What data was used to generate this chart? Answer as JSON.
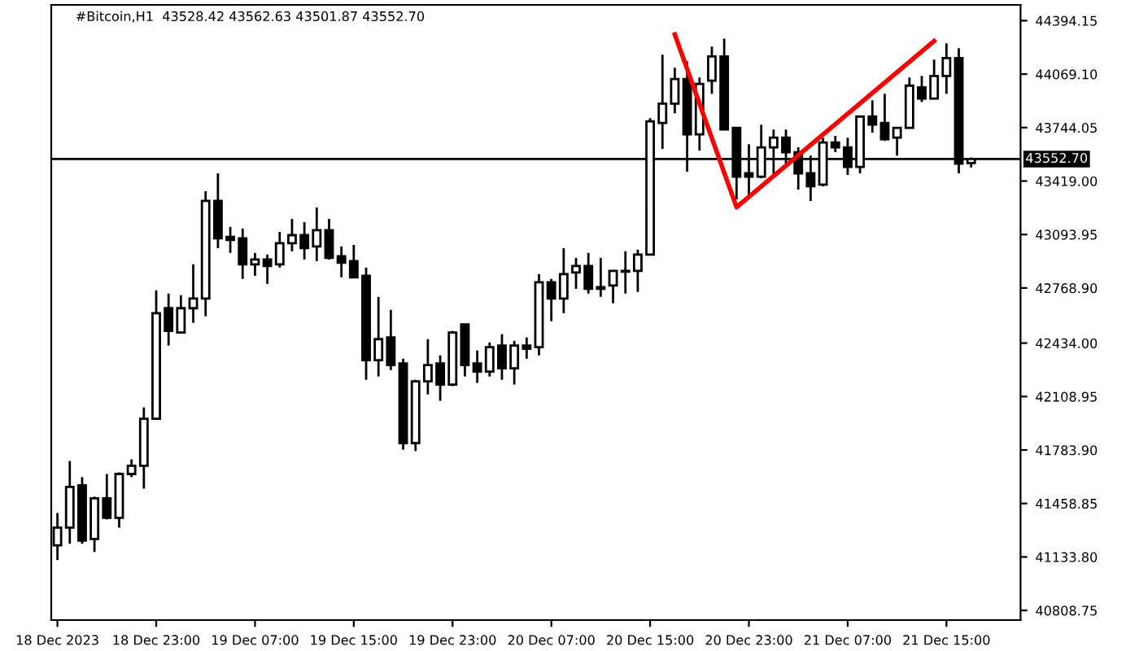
{
  "chart_data": {
    "type": "candlestick",
    "title": "#Bitcoin,H1  43528.42 43562.63 43501.87 43552.70",
    "series": [
      {
        "type": "candlestick",
        "color": "#000000",
        "x": [
          "2023-12-18T15:00",
          "2023-12-18T16:00",
          "2023-12-18T17:00",
          "2023-12-18T18:00",
          "2023-12-18T19:00",
          "2023-12-18T20:00",
          "2023-12-18T21:00",
          "2023-12-18T22:00",
          "2023-12-18T23:00",
          "2023-12-19T00:00",
          "2023-12-19T01:00",
          "2023-12-19T02:00",
          "2023-12-19T03:00",
          "2023-12-19T04:00",
          "2023-12-19T05:00",
          "2023-12-19T06:00",
          "2023-12-19T07:00",
          "2023-12-19T08:00",
          "2023-12-19T09:00",
          "2023-12-19T10:00",
          "2023-12-19T11:00",
          "2023-12-19T12:00",
          "2023-12-19T13:00",
          "2023-12-19T14:00",
          "2023-12-19T15:00",
          "2023-12-19T16:00",
          "2023-12-19T17:00",
          "2023-12-19T18:00",
          "2023-12-19T19:00",
          "2023-12-19T20:00",
          "2023-12-19T21:00",
          "2023-12-19T22:00",
          "2023-12-19T23:00",
          "2023-12-20T00:00",
          "2023-12-20T01:00",
          "2023-12-20T02:00",
          "2023-12-20T03:00",
          "2023-12-20T04:00",
          "2023-12-20T05:00",
          "2023-12-20T06:00",
          "2023-12-20T07:00",
          "2023-12-20T08:00",
          "2023-12-20T09:00",
          "2023-12-20T10:00",
          "2023-12-20T11:00",
          "2023-12-20T12:00",
          "2023-12-20T13:00",
          "2023-12-20T14:00",
          "2023-12-20T15:00",
          "2023-12-20T16:00",
          "2023-12-20T17:00",
          "2023-12-20T18:00",
          "2023-12-20T19:00",
          "2023-12-20T20:00",
          "2023-12-20T21:00",
          "2023-12-20T22:00",
          "2023-12-20T23:00",
          "2023-12-21T00:00",
          "2023-12-21T01:00",
          "2023-12-21T02:00",
          "2023-12-21T03:00",
          "2023-12-21T04:00",
          "2023-12-21T05:00",
          "2023-12-21T06:00",
          "2023-12-21T07:00",
          "2023-12-21T08:00",
          "2023-12-21T09:00",
          "2023-12-21T10:00",
          "2023-12-21T11:00",
          "2023-12-21T12:00",
          "2023-12-21T13:00",
          "2023-12-21T14:00",
          "2023-12-21T15:00",
          "2023-12-21T16:00",
          "2023-12-21T17:00"
        ],
        "ohlc": [
          [
            41204,
            41401,
            41115,
            41312
          ],
          [
            41312,
            41717,
            41214,
            41559
          ],
          [
            41569,
            41619,
            41214,
            41233
          ],
          [
            41243,
            41500,
            41164,
            41490
          ],
          [
            41490,
            41638,
            41362,
            41372
          ],
          [
            41372,
            41648,
            41312,
            41638
          ],
          [
            41638,
            41727,
            41619,
            41688
          ],
          [
            41688,
            42043,
            41549,
            41974
          ],
          [
            41974,
            42755,
            41974,
            42616
          ],
          [
            42646,
            42735,
            42419,
            42508
          ],
          [
            42498,
            42725,
            42498,
            42646
          ],
          [
            42646,
            42913,
            42557,
            42705
          ],
          [
            42705,
            43357,
            42597,
            43298
          ],
          [
            43298,
            43466,
            43011,
            43071
          ],
          [
            43080,
            43140,
            42982,
            43061
          ],
          [
            43071,
            43130,
            42824,
            42913
          ],
          [
            42913,
            42982,
            42843,
            42942
          ],
          [
            42942,
            42972,
            42794,
            42903
          ],
          [
            42913,
            43110,
            42893,
            43041
          ],
          [
            43041,
            43189,
            42992,
            43090
          ],
          [
            43090,
            43169,
            42942,
            43011
          ],
          [
            43021,
            43258,
            42932,
            43120
          ],
          [
            43120,
            43189,
            42942,
            42952
          ],
          [
            42962,
            43021,
            42834,
            42922
          ],
          [
            42932,
            43031,
            42834,
            42834
          ],
          [
            42843,
            42893,
            42211,
            42330
          ],
          [
            42330,
            42715,
            42231,
            42458
          ],
          [
            42468,
            42636,
            42270,
            42300
          ],
          [
            42310,
            42339,
            41786,
            41826
          ],
          [
            41826,
            42211,
            41777,
            42201
          ],
          [
            42201,
            42458,
            42122,
            42300
          ],
          [
            42310,
            42359,
            42083,
            42182
          ],
          [
            42182,
            42508,
            42172,
            42498
          ],
          [
            42547,
            42547,
            42231,
            42300
          ],
          [
            42310,
            42389,
            42192,
            42261
          ],
          [
            42261,
            42438,
            42231,
            42409
          ],
          [
            42419,
            42488,
            42211,
            42280
          ],
          [
            42280,
            42448,
            42182,
            42419
          ],
          [
            42419,
            42468,
            42339,
            42399
          ],
          [
            42409,
            42853,
            42359,
            42804
          ],
          [
            42804,
            42824,
            42567,
            42705
          ],
          [
            42705,
            43011,
            42616,
            42853
          ],
          [
            42863,
            42952,
            42764,
            42903
          ],
          [
            42903,
            42982,
            42735,
            42764
          ],
          [
            42774,
            42952,
            42715,
            42764
          ],
          [
            42784,
            42873,
            42676,
            42873
          ],
          [
            42868,
            42992,
            42735,
            42873
          ],
          [
            42873,
            43002,
            42745,
            42972
          ],
          [
            42972,
            43801,
            42972,
            43782
          ],
          [
            43772,
            44187,
            43614,
            43890
          ],
          [
            43890,
            44108,
            43831,
            44039
          ],
          [
            44039,
            44147,
            43476,
            43703
          ],
          [
            43703,
            44048,
            43604,
            44009
          ],
          [
            44029,
            44236,
            43950,
            44177
          ],
          [
            44177,
            44285,
            43732,
            43732
          ],
          [
            43742,
            43742,
            43308,
            43446
          ],
          [
            43466,
            43643,
            43317,
            43446
          ],
          [
            43446,
            43762,
            43436,
            43624
          ],
          [
            43624,
            43732,
            43456,
            43683
          ],
          [
            43683,
            43732,
            43515,
            43594
          ],
          [
            43594,
            43624,
            43367,
            43466
          ],
          [
            43466,
            43574,
            43298,
            43387
          ],
          [
            43397,
            43683,
            43387,
            43653
          ],
          [
            43653,
            43693,
            43594,
            43624
          ],
          [
            43624,
            43683,
            43456,
            43505
          ],
          [
            43505,
            43811,
            43466,
            43811
          ],
          [
            43811,
            43910,
            43713,
            43762
          ],
          [
            43772,
            43950,
            43663,
            43673
          ],
          [
            43683,
            43742,
            43574,
            43742
          ],
          [
            43742,
            44048,
            43742,
            43999
          ],
          [
            43989,
            44058,
            43900,
            43920
          ],
          [
            43920,
            44157,
            43920,
            44058
          ],
          [
            44058,
            44256,
            43950,
            44167
          ],
          [
            44167,
            44226,
            43466,
            43525
          ],
          [
            43528.42,
            43562.63,
            43501.87,
            43552.7
          ]
        ]
      },
      {
        "type": "line",
        "color": "#ff0000",
        "x": [
          "2023-12-20T17:00",
          "2023-12-20T22:00",
          "2023-12-21T14:00"
        ],
        "values": [
          44310,
          43260,
          44270
        ]
      }
    ],
    "ref_lines": [
      {
        "axis": "y",
        "value": 43552.7,
        "label": "43552.70",
        "color": "#000000"
      }
    ],
    "xlim": [
      "2023-12-18T14:30",
      "2023-12-21T21:00"
    ],
    "xticks": [
      {
        "value": "2023-12-18T15:00",
        "label": "18 Dec 2023"
      },
      {
        "value": "2023-12-18T23:00",
        "label": "18 Dec 23:00"
      },
      {
        "value": "2023-12-19T07:00",
        "label": "19 Dec 07:00"
      },
      {
        "value": "2023-12-19T15:00",
        "label": "19 Dec 15:00"
      },
      {
        "value": "2023-12-19T23:00",
        "label": "19 Dec 23:00"
      },
      {
        "value": "2023-12-20T07:00",
        "label": "20 Dec 07:00"
      },
      {
        "value": "2023-12-20T15:00",
        "label": "20 Dec 15:00"
      },
      {
        "value": "2023-12-20T23:00",
        "label": "20 Dec 23:00"
      },
      {
        "value": "2023-12-21T07:00",
        "label": "21 Dec 07:00"
      },
      {
        "value": "2023-12-21T15:00",
        "label": "21 Dec 15:00"
      }
    ],
    "ylim": [
      40750,
      44490
    ],
    "yticks": [
      {
        "value": 44394.15,
        "label": "44394.15"
      },
      {
        "value": 44069.1,
        "label": "44069.10"
      },
      {
        "value": 43744.05,
        "label": "43744.05"
      },
      {
        "value": 43419,
        "label": "43419.00"
      },
      {
        "value": 43093.95,
        "label": "43093.95"
      },
      {
        "value": 42768.9,
        "label": "42768.90"
      },
      {
        "value": 42434,
        "label": "42434.00"
      },
      {
        "value": 42108.95,
        "label": "42108.95"
      },
      {
        "value": 41783.9,
        "label": "41783.90"
      },
      {
        "value": 41458.85,
        "label": "41458.85"
      },
      {
        "value": 41133.8,
        "label": "41133.80"
      },
      {
        "value": 40808.75,
        "label": "40808.75"
      }
    ],
    "grid": false,
    "legend": false
  }
}
